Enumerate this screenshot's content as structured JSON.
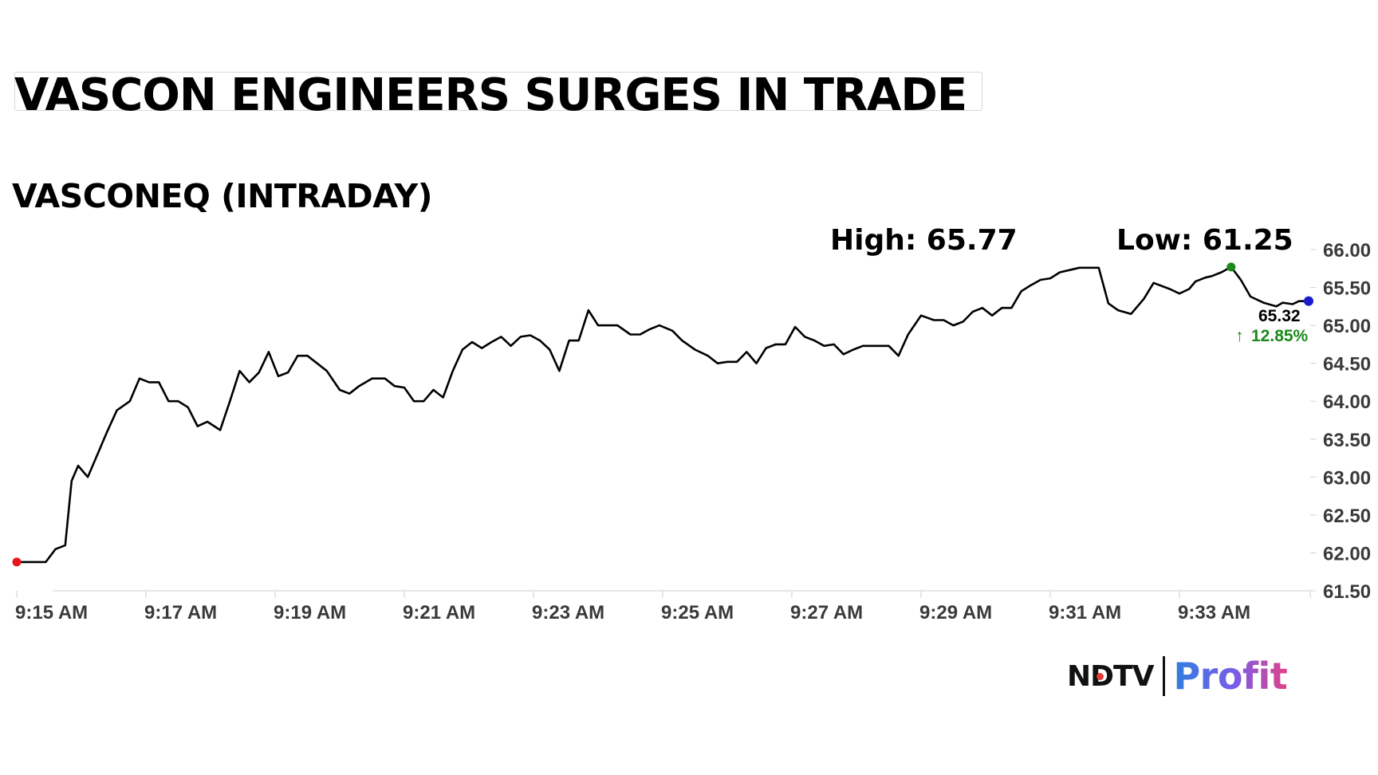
{
  "headline": "VASCON ENGINEERS SURGES IN TRADE",
  "subtitle": "VASCONEQ (INTRADAY)",
  "logo": {
    "brand": "NDTV",
    "product": "Profit"
  },
  "colors": {
    "line": "#000000",
    "start_marker": "#e8161b",
    "high_marker": "#1a8a1a",
    "last_marker": "#1a1acc",
    "change_text": "#1a8a1a"
  },
  "chart_data": {
    "type": "line",
    "title": "VASCONEQ (INTRADAY)",
    "annotations": {
      "high_label": "High: 65.77",
      "low_label": "Low: 61.25",
      "last_price": "65.32",
      "change": "12.85%",
      "change_direction": "up"
    },
    "x_ticks": [
      "9:15 AM",
      "9:17 AM",
      "9:19 AM",
      "9:21 AM",
      "9:23 AM",
      "9:25 AM",
      "9:27 AM",
      "9:29 AM",
      "9:31 AM",
      "9:33 AM"
    ],
    "y_ticks": [
      "66.00",
      "65.50",
      "65.00",
      "64.50",
      "64.00",
      "63.50",
      "63.00",
      "62.50",
      "62.00",
      "61.50"
    ],
    "ylim": [
      61.5,
      66.0
    ],
    "x_minutes_range": [
      0,
      20
    ],
    "grid": false,
    "x_unit": "minutes after 9:15 AM",
    "series": [
      {
        "x": [
          0.0,
          0.15,
          0.3,
          0.45,
          0.6,
          0.75,
          0.85,
          0.95,
          1.1,
          1.25,
          1.4,
          1.55,
          1.75,
          1.9,
          2.05,
          2.2,
          2.35,
          2.5,
          2.65,
          2.8,
          2.95,
          3.15,
          3.3,
          3.45,
          3.6,
          3.75,
          3.9,
          4.05,
          4.2,
          4.35,
          4.5,
          4.65,
          4.8,
          5.0,
          5.15,
          5.3,
          5.5,
          5.7,
          5.85,
          6.0,
          6.15,
          6.3,
          6.45,
          6.6,
          6.75,
          6.9,
          7.05,
          7.2,
          7.35,
          7.5,
          7.65,
          7.8,
          7.95,
          8.1,
          8.25,
          8.4,
          8.55,
          8.7,
          8.85,
          9.0,
          9.15,
          9.3,
          9.5,
          9.65,
          9.8,
          9.95,
          10.15,
          10.3,
          10.5,
          10.7,
          10.85,
          11.0,
          11.15,
          11.3,
          11.45,
          11.6,
          11.75,
          11.9,
          12.05,
          12.2,
          12.35,
          12.5,
          12.65,
          12.8,
          12.95,
          13.1,
          13.3,
          13.5,
          13.65,
          13.8,
          14.0,
          14.2,
          14.35,
          14.5,
          14.65,
          14.8,
          14.95,
          15.1,
          15.25,
          15.4,
          15.55,
          15.7,
          15.85,
          16.0,
          16.15,
          16.3,
          16.45,
          16.6,
          16.75,
          16.9,
          17.05,
          17.25,
          17.45,
          17.6,
          17.85,
          18.0,
          18.15,
          18.25,
          18.4,
          18.5,
          18.65,
          18.8,
          18.95,
          19.1,
          19.3,
          19.5,
          19.6,
          19.75,
          19.85,
          20.0
        ],
        "y": [
          61.88,
          61.88,
          61.88,
          61.88,
          62.05,
          62.1,
          62.95,
          63.15,
          63.0,
          63.3,
          63.6,
          63.88,
          64.0,
          64.3,
          64.25,
          64.25,
          64.0,
          64.0,
          63.92,
          63.67,
          63.73,
          63.62,
          64.0,
          64.4,
          64.25,
          64.38,
          64.65,
          64.33,
          64.38,
          64.6,
          64.6,
          64.5,
          64.4,
          64.15,
          64.1,
          64.2,
          64.3,
          64.3,
          64.2,
          64.18,
          64.0,
          64.0,
          64.15,
          64.05,
          64.4,
          64.68,
          64.78,
          64.7,
          64.78,
          64.85,
          64.73,
          64.85,
          64.87,
          64.8,
          64.68,
          64.4,
          64.8,
          64.8,
          65.2,
          65.0,
          65.0,
          65.0,
          64.88,
          64.88,
          64.95,
          65.0,
          64.93,
          64.8,
          64.68,
          64.6,
          64.5,
          64.52,
          64.52,
          64.65,
          64.5,
          64.7,
          64.75,
          64.75,
          64.98,
          64.85,
          64.8,
          64.73,
          64.75,
          64.62,
          64.68,
          64.73,
          64.73,
          64.73,
          64.6,
          64.88,
          65.13,
          65.07,
          65.07,
          65.0,
          65.05,
          65.18,
          65.23,
          65.13,
          65.23,
          65.23,
          65.45,
          65.53,
          65.6,
          65.62,
          65.7,
          65.73,
          65.76,
          65.76,
          65.76,
          65.29,
          65.2,
          65.15,
          65.35,
          65.56,
          65.48,
          65.42,
          65.48,
          65.58,
          65.63,
          65.65,
          65.7,
          65.77,
          65.6,
          65.38,
          65.3,
          65.25,
          65.3,
          65.28,
          65.32,
          65.32
        ]
      }
    ]
  }
}
